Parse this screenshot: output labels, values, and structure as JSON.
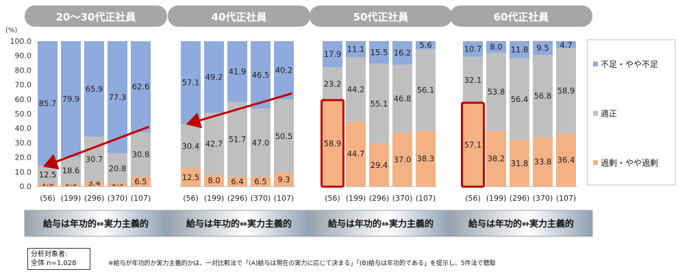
{
  "y_unit": "(%)",
  "legend": {
    "shortage": "不足・やや不足",
    "proper": "適正",
    "excess": "過剰・やや過剰"
  },
  "colors": {
    "shortage": "#8faadc",
    "proper": "#bfbfbf",
    "excess": "#f4b183",
    "highlight": "#c00000",
    "header": "#a6a6a6",
    "arrow": "#c00000"
  },
  "chart_data": {
    "type": "bar",
    "stacked": true,
    "ylim": [
      0,
      100
    ],
    "yticks": [
      "0.0",
      "10.0",
      "20.0",
      "30.0",
      "40.0",
      "50.0",
      "60.0",
      "70.0",
      "80.0",
      "90.0",
      "100.0"
    ],
    "series_order": [
      "excess",
      "proper",
      "shortage"
    ],
    "groups": [
      {
        "title": "20～30代正社員",
        "footer": "給与は年功的⇔実力主義的",
        "bars": [
          {
            "n": "(56)",
            "excess": 1.8,
            "proper": 12.5,
            "shortage": 85.7,
            "excess_label": "1.8",
            "proper_label": "12.5",
            "shortage_label": "85.7"
          },
          {
            "n": "(199)",
            "excess": 1.5,
            "proper": 18.6,
            "shortage": 79.9,
            "excess_label": "1.5",
            "proper_label": "18.6",
            "shortage_label": "79.9"
          },
          {
            "n": "(296)",
            "excess": 3.4,
            "proper": 30.7,
            "shortage": 65.9,
            "excess_label": "3.4",
            "proper_label": "30.7",
            "shortage_label": "65.9"
          },
          {
            "n": "(370)",
            "excess": 1.9,
            "proper": 20.8,
            "shortage": 77.3,
            "excess_label": "1.9",
            "proper_label": "20.8",
            "shortage_label": "77.3"
          },
          {
            "n": "(107)",
            "excess": 6.5,
            "proper": 30.8,
            "shortage": 62.6,
            "excess_label": "6.5",
            "proper_label": "30.8",
            "shortage_label": "62.6"
          }
        ],
        "highlight_excess_bar": null
      },
      {
        "title": "40代正社員",
        "footer": "給与は年功的⇔実力主義的",
        "bars": [
          {
            "n": "(56)",
            "excess": 12.5,
            "proper": 30.4,
            "shortage": 57.1,
            "excess_label": "12.5",
            "proper_label": "30.4",
            "shortage_label": "57.1"
          },
          {
            "n": "(199)",
            "excess": 8.0,
            "proper": 42.7,
            "shortage": 49.2,
            "excess_label": "8.0",
            "proper_label": "42.7",
            "shortage_label": "49.2"
          },
          {
            "n": "(296)",
            "excess": 6.4,
            "proper": 51.7,
            "shortage": 41.9,
            "excess_label": "6.4",
            "proper_label": "51.7",
            "shortage_label": "41.9"
          },
          {
            "n": "(370)",
            "excess": 6.5,
            "proper": 47.0,
            "shortage": 46.5,
            "excess_label": "6.5",
            "proper_label": "47.0",
            "shortage_label": "46.5"
          },
          {
            "n": "(107)",
            "excess": 9.3,
            "proper": 50.5,
            "shortage": 40.2,
            "excess_label": "9.3",
            "proper_label": "50.5",
            "shortage_label": "40.2"
          }
        ],
        "highlight_excess_bar": null
      },
      {
        "title": "50代正社員",
        "footer": "給与は年功的⇔実力主義的",
        "bars": [
          {
            "n": "(56)",
            "excess": 58.9,
            "proper": 23.2,
            "shortage": 17.9,
            "excess_label": "58.9",
            "proper_label": "23.2",
            "shortage_label": "17.9"
          },
          {
            "n": "(199)",
            "excess": 44.7,
            "proper": 44.2,
            "shortage": 11.1,
            "excess_label": "44.7",
            "proper_label": "44.2",
            "shortage_label": "11.1"
          },
          {
            "n": "(296)",
            "excess": 29.4,
            "proper": 55.1,
            "shortage": 15.5,
            "excess_label": "29.4",
            "proper_label": "55.1",
            "shortage_label": "15.5"
          },
          {
            "n": "(370)",
            "excess": 37.0,
            "proper": 46.8,
            "shortage": 16.2,
            "excess_label": "37.0",
            "proper_label": "46.8",
            "shortage_label": "16.2"
          },
          {
            "n": "(107)",
            "excess": 38.3,
            "proper": 56.1,
            "shortage": 5.6,
            "excess_label": "38.3",
            "proper_label": "56.1",
            "shortage_label": "5.6"
          }
        ],
        "highlight_excess_bar": 0
      },
      {
        "title": "60代正社員",
        "footer": "給与は年功的⇔実力主義的",
        "bars": [
          {
            "n": "(56)",
            "excess": 57.1,
            "proper": 32.1,
            "shortage": 10.7,
            "excess_label": "57.1",
            "proper_label": "32.1",
            "shortage_label": "10.7"
          },
          {
            "n": "(199)",
            "excess": 38.2,
            "proper": 53.8,
            "shortage": 8.0,
            "excess_label": "38.2",
            "proper_label": "53.8",
            "shortage_label": "8.0"
          },
          {
            "n": "(296)",
            "excess": 31.8,
            "proper": 56.4,
            "shortage": 11.8,
            "excess_label": "31.8",
            "proper_label": "56.4",
            "shortage_label": "11.8"
          },
          {
            "n": "(370)",
            "excess": 33.8,
            "proper": 56.8,
            "shortage": 9.5,
            "excess_label": "33.8",
            "proper_label": "56.8",
            "shortage_label": "9.5"
          },
          {
            "n": "(107)",
            "excess": 36.4,
            "proper": 58.9,
            "shortage": 4.7,
            "excess_label": "36.4",
            "proper_label": "58.9",
            "shortage_label": "4.7"
          }
        ],
        "highlight_excess_bar": 0
      }
    ],
    "trend_arrows": [
      {
        "group": 0,
        "from_bar": 4,
        "from_value": 41,
        "to_bar": 0,
        "to_value": 14
      },
      {
        "group": 1,
        "from_bar": 4,
        "from_value": 64,
        "to_bar": 0,
        "to_value": 43
      }
    ]
  },
  "note": {
    "line1": "分析対象者:",
    "line2": "全体 n=1,028"
  },
  "footnote": "※給与が年功的か実力主義的かは、一対比較法で「(A)給与は現在の実力に応じて決まる」「(B)給与は年功的である」を提示し、5件法で聴取"
}
